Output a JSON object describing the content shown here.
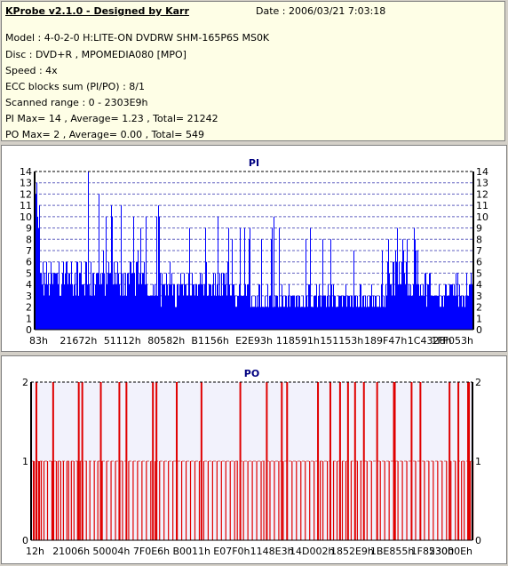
{
  "info": {
    "title": "KProbe v2.1.0 - Designed by Karr",
    "date": "Date : 2006/03/21 7:03:18",
    "lines": [
      "Model : 4-0-2-0 H:LITE-ON DVDRW SHM-165P6S MS0K",
      "Disc : DVD+R , MPOMEDIA080 [MPO]",
      "Speed : 4x",
      "ECC blocks sum (PI/PO) : 8/1",
      "Scanned range : 0 - 2303E9h",
      "PI Max= 14 , Average= 1.23 , Total= 21242",
      "PO Max= 2 , Average= 0.00 , Total= 549"
    ]
  },
  "colors": {
    "pi_bar": "#0000ff",
    "po_bar": "#e00000",
    "title": "#000080",
    "plot_bg": "#ffffff",
    "po_plot_bg": "#f2f2fc",
    "grid": "#6060c0"
  },
  "chart_data": [
    {
      "type": "bar",
      "title": "PI",
      "ylim": [
        0,
        14
      ],
      "yticks": [
        0,
        1,
        2,
        3,
        4,
        5,
        6,
        7,
        8,
        9,
        10,
        11,
        12,
        13,
        14
      ],
      "grid": true,
      "xlabels": [
        "83h",
        "21672h",
        "51112h",
        "80582h",
        "B1156h",
        "E2E93h",
        "118591h",
        "151153h",
        "189F47h",
        "1C4328h",
        "1FF053h"
      ],
      "max": 14,
      "average": 1.23,
      "spike_values": [
        14,
        12,
        10,
        11,
        10,
        11,
        10,
        9,
        10,
        10,
        11,
        10,
        9,
        9,
        10,
        9,
        8,
        9,
        9,
        8,
        9,
        8,
        8,
        9,
        10,
        9,
        8,
        9,
        8,
        8,
        7,
        7,
        8,
        6,
        7,
        9,
        8,
        8,
        9,
        8,
        7
      ]
    },
    {
      "type": "bar",
      "title": "PO",
      "ylim": [
        0,
        2
      ],
      "yticks": [
        0,
        1,
        2
      ],
      "grid": true,
      "xlabels": [
        "12h",
        "21006h",
        "50004h",
        "7F0E6h",
        "B0011h",
        "E07F0h",
        "1148E3h",
        "14D002h",
        "1852E9h",
        "1BE855h",
        "1F8530h",
        "23000Eh"
      ],
      "max": 2,
      "average": 0.0,
      "peaks_value2": [
        5,
        24,
        53,
        57,
        78,
        99,
        107,
        137,
        141,
        164,
        192,
        236,
        266,
        283,
        289,
        324,
        338,
        349,
        358,
        366,
        376,
        391,
        410,
        430,
        440,
        473,
        483,
        494
      ],
      "peaks_value1": [
        2,
        3,
        6,
        8,
        9,
        11,
        14,
        18,
        23,
        25,
        28,
        30,
        33,
        36,
        40,
        42,
        45,
        48,
        52,
        55,
        58,
        62,
        66,
        71,
        75,
        80,
        85,
        90,
        95,
        100,
        103,
        110,
        115,
        120,
        125,
        130,
        135,
        140,
        145,
        150,
        155,
        160,
        165,
        170,
        175,
        180,
        185,
        190,
        195,
        200,
        205,
        210,
        215,
        220,
        225,
        230,
        233,
        240,
        245,
        250,
        255,
        260,
        263,
        270,
        275,
        280,
        285,
        295,
        300,
        305,
        310,
        315,
        320,
        327,
        330,
        335,
        342,
        346,
        352,
        356,
        362,
        369,
        373,
        380,
        385,
        395,
        400,
        405,
        412,
        415,
        420,
        425,
        435,
        445,
        450,
        455,
        460,
        465,
        470,
        475,
        480,
        487,
        490,
        497,
        500
      ]
    }
  ]
}
